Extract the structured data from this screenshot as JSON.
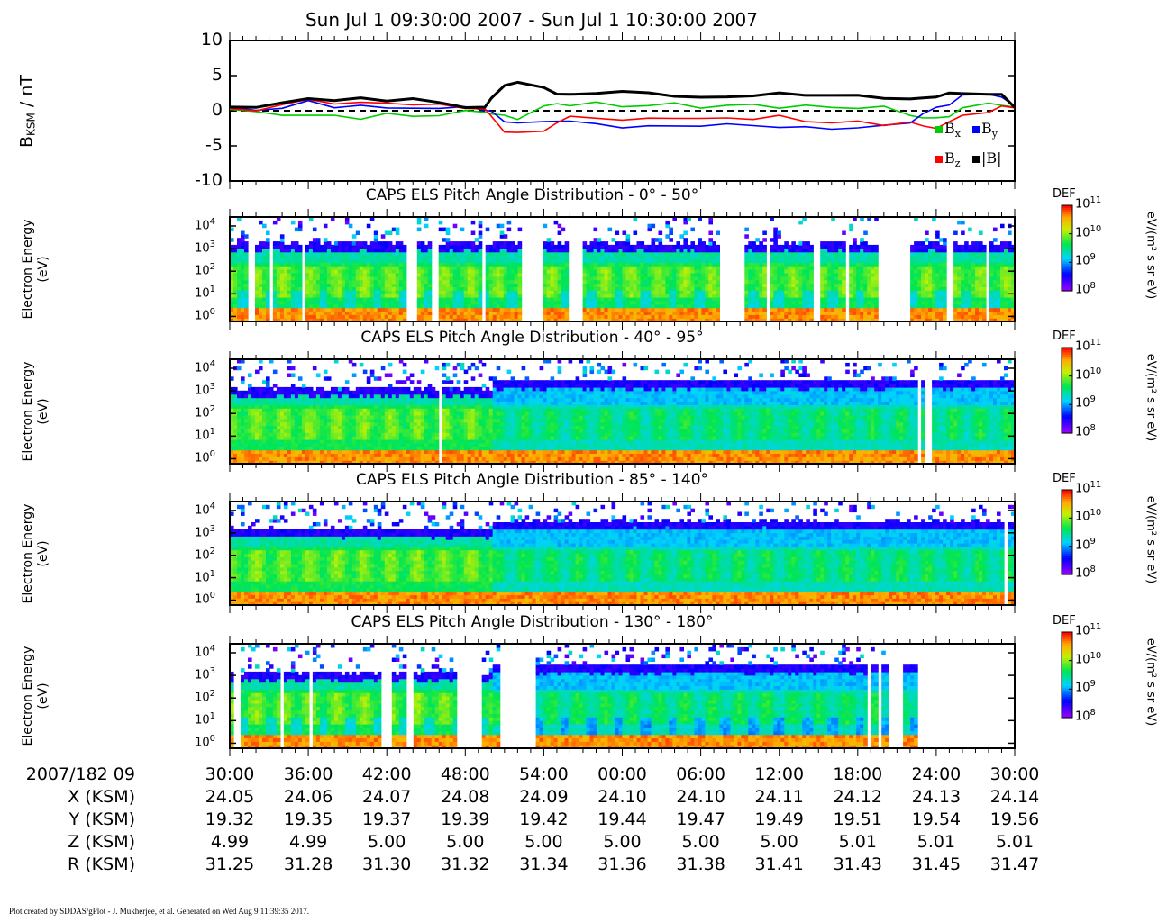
{
  "header": {
    "title": "Sun Jul 1 09:30:00 2007 - Sun Jul 1 10:30:00 2007"
  },
  "chart_data": [
    {
      "type": "line",
      "ylabel_main": "B",
      "ylabel_sub": "KSM",
      "ylabel_unit": " / nT",
      "ylim": [
        -10,
        10
      ],
      "yticks": [
        "10",
        "5",
        "0",
        "-5",
        "-10"
      ],
      "x": [
        0,
        2,
        4,
        6,
        8,
        10,
        12,
        14,
        16,
        18,
        19.5,
        20,
        21,
        22,
        24,
        25,
        26,
        28,
        30,
        32,
        34,
        36,
        38,
        40,
        42,
        44,
        46,
        48,
        50,
        52,
        53,
        54,
        55,
        56,
        58,
        59,
        60
      ],
      "series": [
        {
          "name": "B",
          "sub": "x",
          "color": "#00cc00",
          "values": [
            0.2,
            -0.3,
            -0.4,
            -0.8,
            -0.7,
            -1.0,
            -0.6,
            -0.7,
            -0.6,
            -0.2,
            0.0,
            -0.5,
            -0.8,
            -1.0,
            0.5,
            1.0,
            0.9,
            1.0,
            0.7,
            0.8,
            0.9,
            0.6,
            0.7,
            0.8,
            0.6,
            0.6,
            0.5,
            0.5,
            0.4,
            -0.5,
            -1.0,
            -1.2,
            -0.6,
            0.3,
            1.0,
            1.0,
            0.3
          ]
        },
        {
          "name": "B",
          "sub": "y",
          "color": "#0000ff",
          "values": [
            0.3,
            0.1,
            0.5,
            1.2,
            0.6,
            0.8,
            0.2,
            0.6,
            0.2,
            0.5,
            0.3,
            -0.3,
            -1.5,
            -1.6,
            -1.8,
            -1.3,
            -1.5,
            -2.0,
            -2.2,
            -2.3,
            -2.2,
            -2.0,
            -2.1,
            -2.0,
            -2.3,
            -2.5,
            -2.4,
            -2.5,
            -2.2,
            -1.5,
            -0.6,
            0.5,
            1.0,
            2.0,
            2.5,
            2.0,
            0.5
          ]
        },
        {
          "name": "B",
          "sub": "z",
          "color": "#ff0000",
          "values": [
            0.1,
            0.2,
            0.8,
            1.5,
            1.2,
            1.0,
            1.1,
            1.0,
            0.7,
            0.5,
            0.3,
            -1.0,
            -2.8,
            -3.2,
            -3.0,
            -1.5,
            -1.0,
            -1.0,
            -1.2,
            -1.3,
            -0.9,
            -1.1,
            -1.2,
            -1.0,
            -0.8,
            -1.6,
            -1.5,
            -1.7,
            -2.0,
            -1.5,
            -2.4,
            -2.3,
            -1.6,
            -0.8,
            0.0,
            0.5,
            0.4
          ]
        },
        {
          "name": "|B|",
          "sub": "",
          "color": "#000000",
          "values": [
            0.5,
            0.6,
            1.0,
            1.8,
            1.5,
            1.7,
            1.5,
            1.7,
            1.1,
            0.6,
            0.4,
            1.8,
            3.7,
            3.9,
            3.4,
            2.4,
            2.2,
            2.6,
            2.7,
            2.5,
            2.2,
            1.8,
            2.0,
            2.2,
            2.4,
            2.3,
            2.2,
            2.1,
            1.9,
            1.6,
            1.8,
            2.1,
            2.4,
            2.5,
            2.4,
            2.2,
            0.6
          ]
        }
      ],
      "zero_line": "dashed",
      "legend": "bottom-right"
    },
    {
      "type": "heatmap",
      "title": "CAPS ELS Pitch Angle Distribution - 0° - 50°",
      "ylabel": [
        "Electron Energy",
        "(eV)"
      ],
      "yscale": "log",
      "ylim": [
        0.6,
        25000
      ],
      "gaps": [
        [
          1.4,
          1.8
        ],
        [
          2.9,
          3.2
        ],
        [
          4.0,
          4.2
        ],
        [
          5.5,
          5.8
        ],
        [
          13.6,
          14.2
        ],
        [
          15.5,
          16.1
        ],
        [
          19.3,
          19.6
        ],
        [
          22.4,
          24.0
        ],
        [
          26.0,
          27.0
        ],
        [
          37.5,
          39.4
        ],
        [
          40.9,
          41.2
        ],
        [
          44.5,
          45.2
        ],
        [
          47.0,
          47.4
        ],
        [
          49.6,
          52.1
        ],
        [
          54.9,
          55.3
        ],
        [
          57.8,
          58.1
        ]
      ],
      "colorbar": {
        "label": "DEF",
        "unit": "eV/(m² s sr eV)",
        "range": [
          8,
          11
        ]
      }
    },
    {
      "type": "heatmap",
      "title": "CAPS ELS Pitch Angle Distribution - 40° - 95°",
      "ylabel": [
        "Electron Energy",
        "(eV)"
      ],
      "yscale": "log",
      "ylim": [
        0.6,
        25000
      ],
      "gaps": [
        [
          4.9,
          5.0
        ],
        [
          5.2,
          5.3
        ],
        [
          5.5,
          5.6
        ],
        [
          15.7,
          15.8
        ],
        [
          16.1,
          16.2
        ],
        [
          19.3,
          19.4
        ],
        [
          52.7,
          52.9
        ],
        [
          53.1,
          53.3
        ],
        [
          53.4,
          53.6
        ]
      ],
      "colorbar": {
        "label": "DEF",
        "unit": "eV/(m² s sr eV)",
        "range": [
          8,
          11
        ]
      }
    },
    {
      "type": "heatmap",
      "title": "CAPS ELS Pitch Angle Distribution - 85° - 140°",
      "ylabel": [
        "Electron Energy",
        "(eV)"
      ],
      "yscale": "log",
      "ylim": [
        0.6,
        25000
      ],
      "gaps": [
        [
          19.0,
          19.1
        ],
        [
          58.8,
          59.0
        ],
        [
          59.3,
          59.4
        ]
      ],
      "colorbar": {
        "label": "DEF",
        "unit": "eV/(m² s sr eV)",
        "range": [
          8,
          11
        ]
      }
    },
    {
      "type": "heatmap",
      "title": "CAPS ELS Pitch Angle Distribution - 130° - 180°",
      "ylabel": [
        "Electron Energy",
        "(eV)"
      ],
      "yscale": "log",
      "ylim": [
        0.6,
        25000
      ],
      "gaps": [
        [
          0.4,
          0.8
        ],
        [
          1.0,
          1.1
        ],
        [
          3.5,
          3.6
        ],
        [
          3.9,
          4.0
        ],
        [
          4.4,
          4.5
        ],
        [
          5.7,
          5.8
        ],
        [
          6.1,
          6.2
        ],
        [
          11.6,
          12.4
        ],
        [
          13.6,
          13.9
        ],
        [
          15.7,
          15.8
        ],
        [
          17.4,
          19.4
        ],
        [
          20.7,
          23.4
        ],
        [
          48.7,
          48.9
        ],
        [
          49.2,
          49.4
        ],
        [
          49.6,
          49.7
        ],
        [
          50.3,
          51.4
        ],
        [
          52.5,
          54.5
        ],
        [
          54.5,
          60.0
        ]
      ],
      "colorbar": {
        "label": "DEF",
        "unit": "eV/(m² s sr eV)",
        "range": [
          8,
          11
        ]
      }
    }
  ],
  "energy_ticks": [
    {
      "base": "10",
      "exp": "4"
    },
    {
      "base": "10",
      "exp": "3"
    },
    {
      "base": "10",
      "exp": "2"
    },
    {
      "base": "10",
      "exp": "1"
    },
    {
      "base": "10",
      "exp": "0"
    }
  ],
  "colorbar_ticks": [
    {
      "base": "10",
      "exp": "11"
    },
    {
      "base": "10",
      "exp": "10"
    },
    {
      "base": "10",
      "exp": "9"
    },
    {
      "base": "10",
      "exp": "8"
    }
  ],
  "ephemeris": {
    "rows": [
      {
        "label": "2007/182 09",
        "values": [
          "30:00",
          "36:00",
          "42:00",
          "48:00",
          "54:00",
          "00:00",
          "06:00",
          "12:00",
          "18:00",
          "24:00",
          "30:00"
        ]
      },
      {
        "label": "X (KSM)",
        "values": [
          "24.05",
          "24.06",
          "24.07",
          "24.08",
          "24.09",
          "24.10",
          "24.10",
          "24.11",
          "24.12",
          "24.13",
          "24.14"
        ]
      },
      {
        "label": "Y (KSM)",
        "values": [
          "19.32",
          "19.35",
          "19.37",
          "19.39",
          "19.42",
          "19.44",
          "19.47",
          "19.49",
          "19.51",
          "19.54",
          "19.56"
        ]
      },
      {
        "label": "Z (KSM)",
        "values": [
          "4.99",
          "4.99",
          "5.00",
          "5.00",
          "5.00",
          "5.00",
          "5.00",
          "5.00",
          "5.01",
          "5.01",
          "5.01"
        ]
      },
      {
        "label": "R (KSM)",
        "values": [
          "31.25",
          "31.28",
          "31.30",
          "31.32",
          "31.34",
          "31.36",
          "31.38",
          "31.41",
          "31.43",
          "31.45",
          "31.47"
        ]
      }
    ]
  },
  "footer": {
    "credit": "Plot created by SDDAS/gPlot - J. Mukherjee, et al.  Generated on Wed Aug 9 11:39:35 2017."
  }
}
